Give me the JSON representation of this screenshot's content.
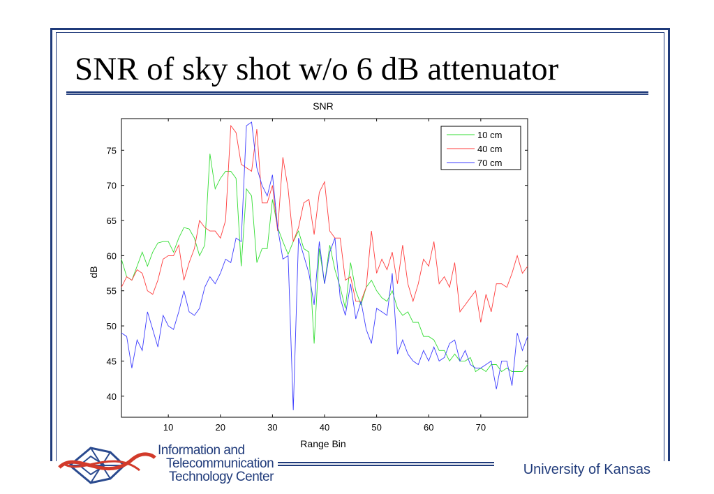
{
  "slide": {
    "title": "SNR of sky shot w/o 6 dB attenuator",
    "footer": "University of Kansas",
    "logo_lines": [
      "Information and",
      "Telecommunication",
      "Technology Center"
    ],
    "accent_color": "#1f3a7a"
  },
  "chart_data": {
    "type": "line",
    "title": "SNR",
    "xlabel": "Range Bin",
    "ylabel": "dB",
    "xlim": [
      1,
      79
    ],
    "ylim": [
      37,
      79.5
    ],
    "xticks": [
      10,
      20,
      30,
      40,
      50,
      60,
      70
    ],
    "yticks": [
      40,
      45,
      50,
      55,
      60,
      65,
      70,
      75
    ],
    "legend_position": "top-right",
    "grid": false,
    "x": [
      1,
      2,
      3,
      4,
      5,
      6,
      7,
      8,
      9,
      10,
      11,
      12,
      13,
      14,
      15,
      16,
      17,
      18,
      19,
      20,
      21,
      22,
      23,
      24,
      25,
      26,
      27,
      28,
      29,
      30,
      31,
      32,
      33,
      34,
      35,
      36,
      37,
      38,
      39,
      40,
      41,
      42,
      43,
      44,
      45,
      46,
      47,
      48,
      49,
      50,
      51,
      52,
      53,
      54,
      55,
      56,
      57,
      58,
      59,
      60,
      61,
      62,
      63,
      64,
      65,
      66,
      67,
      68,
      69,
      70,
      71,
      72,
      73,
      74,
      75,
      76,
      77,
      78,
      79
    ],
    "series": [
      {
        "name": "10 cm",
        "color": "#33dd33",
        "values": [
          59.5,
          57,
          56.5,
          58.5,
          60.5,
          58.5,
          60.5,
          61.8,
          62,
          62,
          60.5,
          62.5,
          64,
          63.8,
          62.5,
          60,
          61.5,
          74.5,
          69.5,
          71,
          72,
          72,
          71,
          58.5,
          69.5,
          68.5,
          59,
          61,
          61,
          68,
          64,
          62,
          60.2,
          62,
          63.5,
          61,
          60.5,
          47.5,
          61,
          56,
          61.5,
          58,
          55.5,
          52.5,
          59,
          55,
          53,
          55.5,
          56.5,
          55,
          54,
          53.5,
          55,
          52.5,
          51.5,
          52,
          50.5,
          50.5,
          48.5,
          48.5,
          48,
          46.5,
          46.5,
          45,
          46,
          45,
          45,
          45.5,
          43.5,
          44,
          43.5,
          44.5,
          44.5,
          43.5,
          44,
          43.5,
          43.5,
          43.5,
          44.5
        ]
      },
      {
        "name": "40 cm",
        "color": "#ff3b3b",
        "values": [
          55.5,
          57,
          56.5,
          58,
          57.5,
          55,
          54.5,
          56.5,
          59.5,
          60,
          60,
          61.5,
          56.5,
          59,
          61,
          65,
          64,
          63.5,
          63.5,
          62.5,
          65,
          78.5,
          77.5,
          73,
          72.5,
          72,
          78,
          67.5,
          67.5,
          70,
          63.5,
          74,
          69.5,
          62,
          64,
          67.5,
          68,
          63,
          69,
          70.5,
          63.5,
          62.5,
          62.5,
          56.5,
          57,
          53.5,
          53.5,
          55.5,
          63.5,
          57.5,
          59.5,
          58,
          60.5,
          56,
          61.5,
          56,
          53.5,
          56,
          59.5,
          58.5,
          62,
          56,
          57,
          55.5,
          59,
          52,
          53,
          54,
          55,
          50.5,
          54.5,
          52,
          56,
          56,
          55.5,
          57.5,
          60,
          57.5,
          58.5
        ]
      },
      {
        "name": "70 cm",
        "color": "#3b3bff",
        "values": [
          49,
          48.5,
          44,
          48,
          46.5,
          52,
          49.5,
          47,
          51.5,
          50,
          49.5,
          52,
          55,
          52,
          51.5,
          52.5,
          55.5,
          57,
          56,
          57.5,
          59.5,
          59,
          62.5,
          62,
          78.5,
          79,
          72.5,
          70,
          68.5,
          71.5,
          64,
          59.5,
          60,
          38,
          62.5,
          60,
          57.5,
          53,
          62,
          56,
          60.5,
          62.5,
          54,
          51.5,
          56,
          51,
          53.5,
          49.5,
          47.5,
          52.5,
          52,
          51.5,
          57.5,
          46,
          48,
          46,
          45,
          44.5,
          46.5,
          45,
          47,
          45,
          45.5,
          47.5,
          48,
          45,
          46.5,
          44.5,
          44,
          44,
          44.5,
          45,
          41,
          45,
          45,
          41.5,
          49,
          46.5,
          48.5
        ]
      }
    ]
  }
}
